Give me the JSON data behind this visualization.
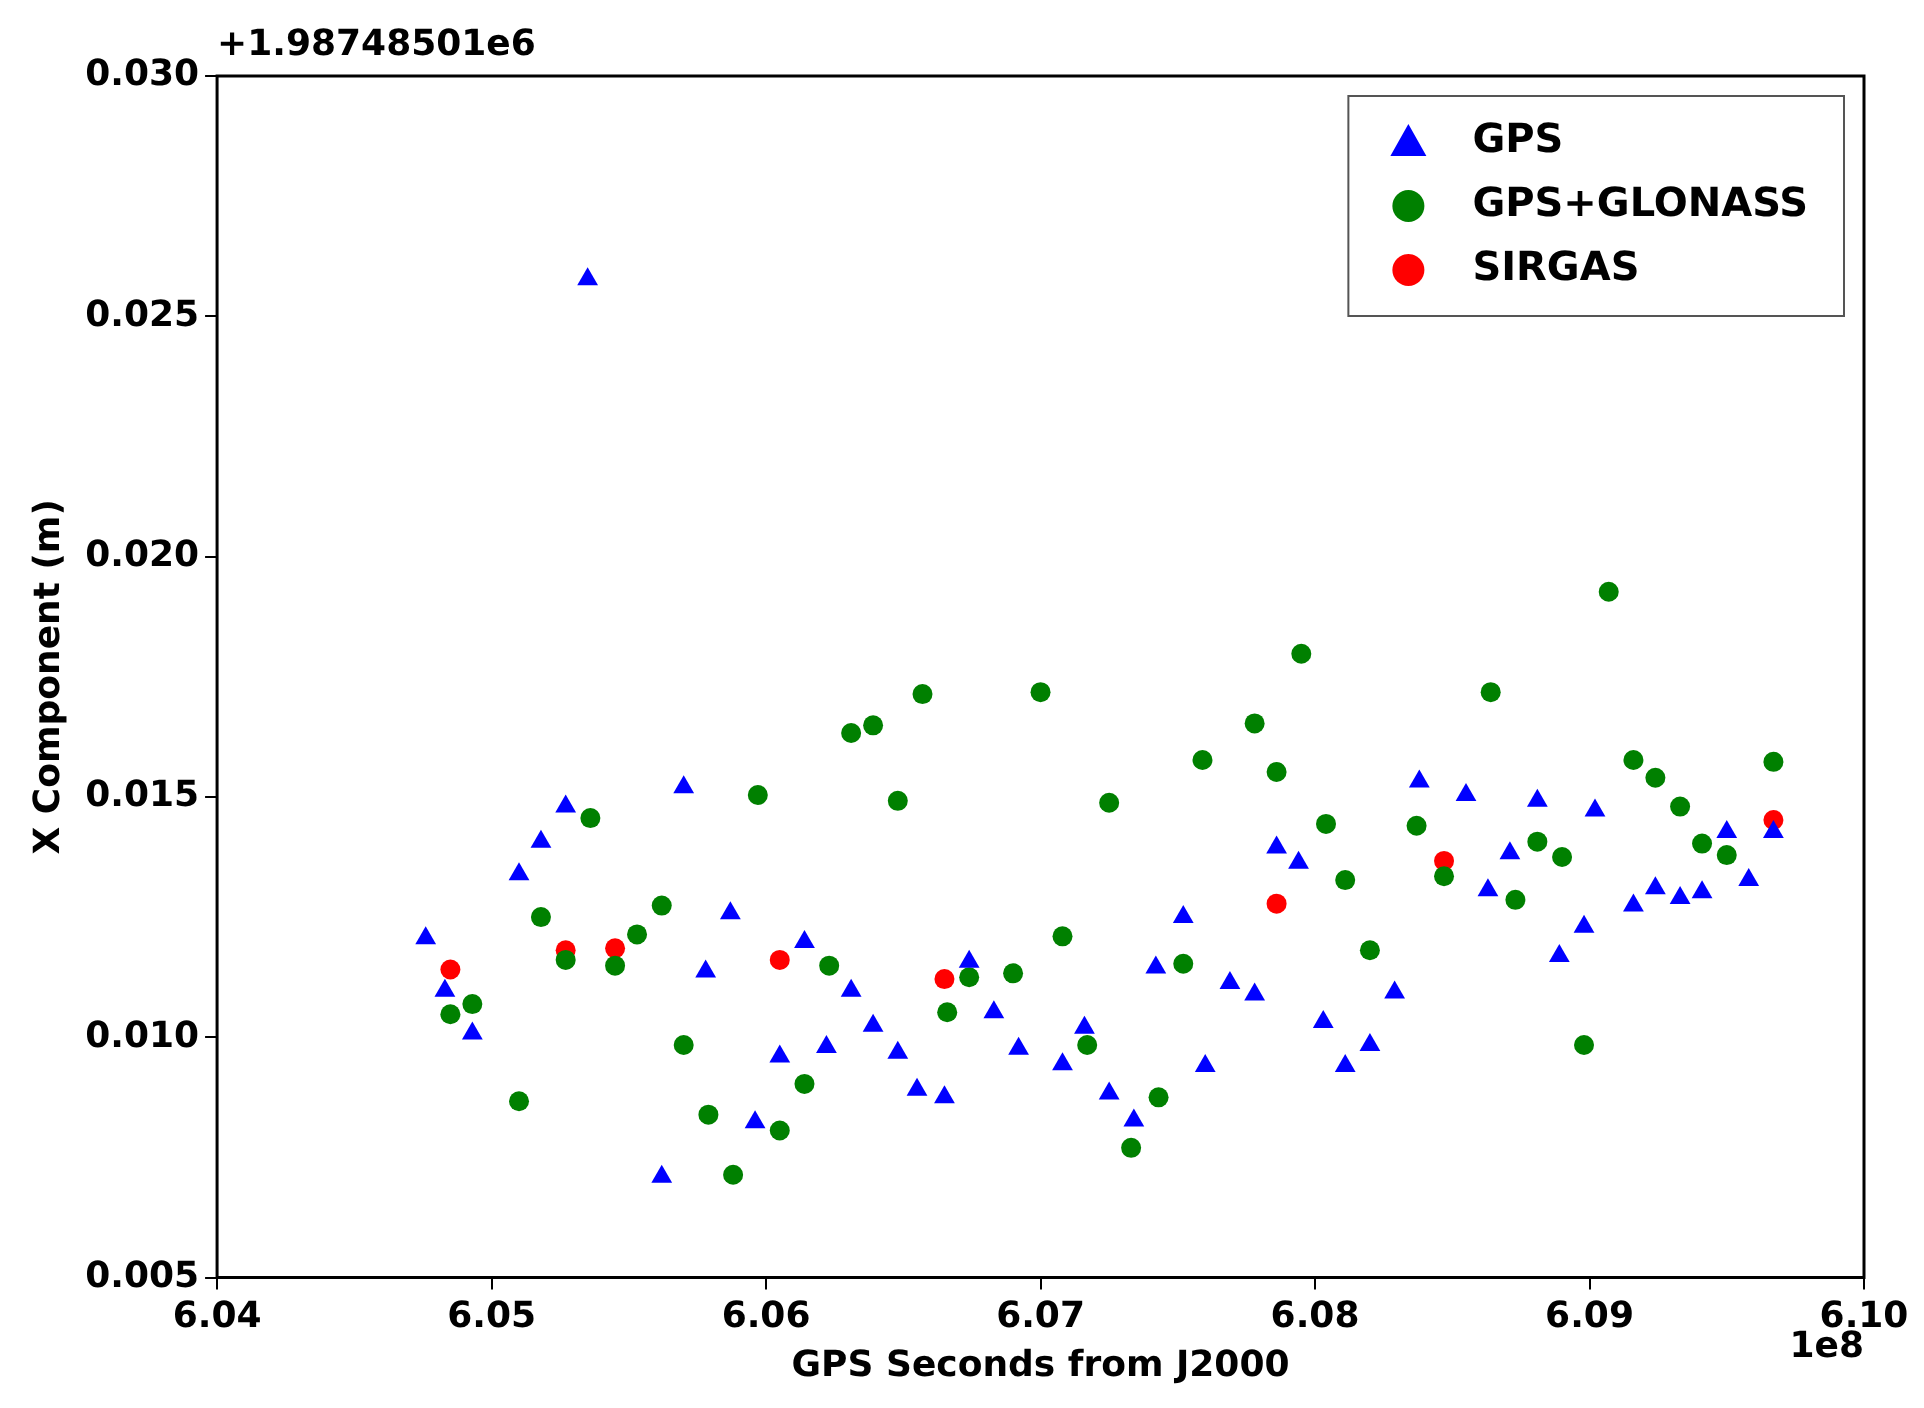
{
  "chart_data": {
    "type": "scatter",
    "xlabel": "GPS Seconds from J2000",
    "ylabel": "X Component (m)",
    "annotations": [
      "+1.98748501e6",
      "1e8"
    ],
    "xlim": [
      6.04,
      6.1
    ],
    "xticks": [
      6.04,
      6.05,
      6.06,
      6.07,
      6.08,
      6.09,
      {
        "value": 6.1,
        "label": "6.10"
      }
    ],
    "ylim": [
      0.005,
      0.03
    ],
    "yticks": [
      {
        "value": 0.005,
        "label": "0.005"
      },
      {
        "value": 0.01,
        "label": "0.010"
      },
      {
        "value": 0.015,
        "label": "0.015"
      },
      {
        "value": 0.02,
        "label": "0.020"
      },
      {
        "value": 0.025,
        "label": "0.025"
      },
      {
        "value": 0.03,
        "label": "0.030"
      }
    ],
    "grid": false,
    "legend": "top right",
    "series": [
      {
        "name": "GPS",
        "color": "#0000ff",
        "marker": "triangle",
        "x": [
          6.0476,
          6.0483,
          6.0493,
          6.051,
          6.0518,
          6.0527,
          6.0535,
          6.0562,
          6.057,
          6.0578,
          6.0587,
          6.0596,
          6.0605,
          6.0614,
          6.0622,
          6.0631,
          6.0639,
          6.0648,
          6.0655,
          6.0665,
          6.0674,
          6.0683,
          6.0692,
          6.0708,
          6.0716,
          6.0725,
          6.0734,
          6.0742,
          6.0752,
          6.076,
          6.0769,
          6.0778,
          6.0786,
          6.0794,
          6.0803,
          6.0811,
          6.082,
          6.0829,
          6.0838,
          6.0855,
          6.0863,
          6.0871,
          6.0881,
          6.0889,
          6.0898,
          6.0902,
          6.0916,
          6.0924,
          6.0933,
          6.0941,
          6.095,
          6.0958,
          6.0967
        ],
        "values": [
          0.01206,
          0.01097,
          0.01008,
          0.01339,
          0.01407,
          0.0148,
          0.02577,
          0.0071,
          0.0152,
          0.01137,
          0.01258,
          0.00823,
          0.0096,
          0.01198,
          0.0098,
          0.01097,
          0.01024,
          0.00968,
          0.00891,
          0.00875,
          0.01157,
          0.01052,
          0.00976,
          0.00944,
          0.0102,
          0.00883,
          0.00827,
          0.01145,
          0.0125,
          0.0094,
          0.01113,
          0.01089,
          0.01395,
          0.01363,
          0.01032,
          0.0094,
          0.00984,
          0.01093,
          0.01532,
          0.01504,
          0.01306,
          0.01383,
          0.01492,
          0.01169,
          0.0123,
          0.01472,
          0.01274,
          0.0131,
          0.0129,
          0.01302,
          0.01427,
          0.01327,
          0.01427
        ]
      },
      {
        "name": "GPS+GLONASS",
        "color": "#008000",
        "marker": "circle",
        "x": [
          6.0485,
          6.0493,
          6.051,
          6.0518,
          6.0527,
          6.0536,
          6.0545,
          6.0553,
          6.0562,
          6.057,
          6.0579,
          6.0588,
          6.0597,
          6.0605,
          6.0614,
          6.0623,
          6.0631,
          6.0639,
          6.0648,
          6.0657,
          6.0666,
          6.0674,
          6.069,
          6.07,
          6.0708,
          6.0717,
          6.0725,
          6.0733,
          6.0743,
          6.0752,
          6.0759,
          6.0778,
          6.0786,
          6.0795,
          6.0804,
          6.0811,
          6.082,
          6.0837,
          6.0847,
          6.0864,
          6.0873,
          6.0881,
          6.089,
          6.0898,
          6.0907,
          6.0916,
          6.0924,
          6.0933,
          6.0941,
          6.095,
          6.0967
        ],
        "values": [
          0.01048,
          0.01069,
          0.00867,
          0.0125,
          0.01161,
          0.01456,
          0.01149,
          0.01214,
          0.01274,
          0.00984,
          0.00839,
          0.00714,
          0.01504,
          0.00806,
          0.00903,
          0.01149,
          0.01633,
          0.01649,
          0.01492,
          0.01714,
          0.01052,
          0.01125,
          0.01133,
          0.01718,
          0.0121,
          0.00984,
          0.01488,
          0.0077,
          0.00875,
          0.01153,
          0.01577,
          0.01653,
          0.01552,
          0.01798,
          0.01444,
          0.01327,
          0.01181,
          0.0144,
          0.01335,
          0.01718,
          0.01286,
          0.01407,
          0.01375,
          0.00984,
          0.01927,
          0.01577,
          0.0154,
          0.0148,
          0.01403,
          0.01379,
          0.01573
        ]
      },
      {
        "name": "SIRGAS",
        "color": "#ff0000",
        "marker": "circle",
        "x": [
          6.0485,
          6.0527,
          6.0545,
          6.0605,
          6.0665,
          6.0786,
          6.0847,
          6.0967
        ],
        "values": [
          0.01141,
          0.01181,
          0.01185,
          0.01161,
          0.01121,
          0.01278,
          0.01367,
          0.01452
        ]
      }
    ]
  }
}
